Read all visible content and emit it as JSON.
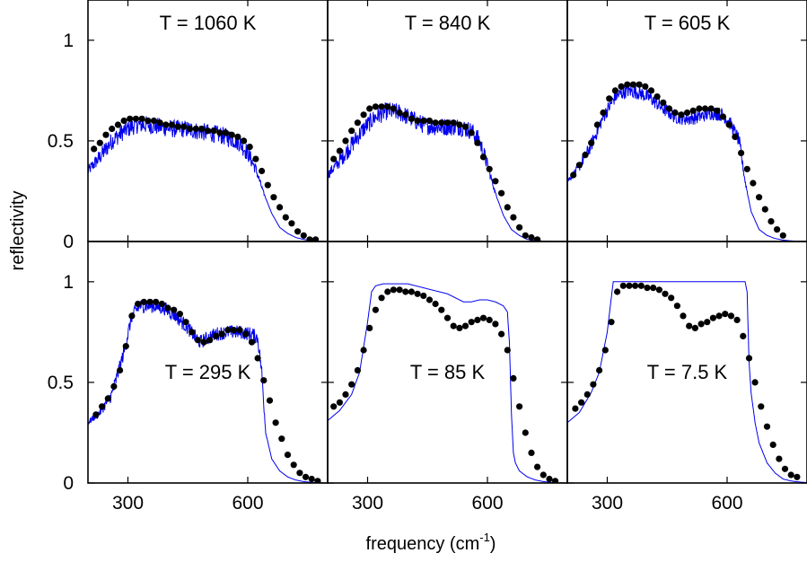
{
  "chart_data": {
    "type": "scatter",
    "ylabel": "reflectivity",
    "xlabel": "frequency (cm",
    "xlabel_sup": "-1",
    "xlabel_close": ")",
    "xlim": [
      200,
      800
    ],
    "ylim": [
      0,
      1.2
    ],
    "xticks": [
      300,
      600
    ],
    "xtick_labels": [
      "300",
      "600"
    ],
    "yticks": [
      0,
      0.5,
      1
    ],
    "ytick_labels": [
      "0",
      "0.5",
      "1"
    ],
    "colors": {
      "measured": "#000000",
      "fit": "#0000ee"
    },
    "grid": false,
    "panels": [
      {
        "label": "T =  1060 K",
        "label_pos": "top",
        "dot_x": [
          215,
          230,
          245,
          260,
          275,
          290,
          305,
          320,
          335,
          350,
          365,
          380,
          395,
          410,
          425,
          440,
          455,
          470,
          485,
          500,
          515,
          530,
          545,
          560,
          575,
          590,
          605,
          620,
          635,
          650,
          665,
          680,
          695,
          710,
          725,
          740,
          755,
          770
        ],
        "dot_y": [
          0.46,
          0.49,
          0.53,
          0.56,
          0.58,
          0.6,
          0.61,
          0.61,
          0.61,
          0.6,
          0.6,
          0.59,
          0.58,
          0.58,
          0.57,
          0.57,
          0.56,
          0.56,
          0.56,
          0.55,
          0.55,
          0.54,
          0.54,
          0.53,
          0.52,
          0.5,
          0.47,
          0.41,
          0.35,
          0.28,
          0.22,
          0.17,
          0.12,
          0.09,
          0.05,
          0.03,
          0.01,
          0.01
        ],
        "fit_x": [
          200,
          230,
          260,
          290,
          320,
          350,
          380,
          410,
          440,
          470,
          500,
          530,
          560,
          580,
          600,
          620,
          640,
          660,
          680,
          700,
          720,
          740,
          760,
          780,
          800
        ],
        "fit_y": [
          0.35,
          0.42,
          0.5,
          0.55,
          0.58,
          0.58,
          0.57,
          0.56,
          0.56,
          0.55,
          0.54,
          0.53,
          0.51,
          0.49,
          0.44,
          0.36,
          0.24,
          0.14,
          0.07,
          0.04,
          0.02,
          0.01,
          0.005,
          0.002,
          0.001
        ],
        "noise": 0.045
      },
      {
        "label": "T =  840 K",
        "label_pos": "top",
        "dot_x": [
          215,
          230,
          245,
          260,
          275,
          290,
          305,
          320,
          335,
          350,
          365,
          380,
          395,
          410,
          425,
          440,
          455,
          470,
          485,
          500,
          515,
          530,
          545,
          560,
          575,
          590,
          605,
          620,
          635,
          650,
          665,
          680,
          695,
          710,
          725
        ],
        "dot_y": [
          0.41,
          0.45,
          0.5,
          0.55,
          0.59,
          0.63,
          0.66,
          0.67,
          0.67,
          0.67,
          0.66,
          0.64,
          0.63,
          0.61,
          0.6,
          0.6,
          0.6,
          0.59,
          0.59,
          0.59,
          0.59,
          0.58,
          0.57,
          0.54,
          0.49,
          0.42,
          0.36,
          0.3,
          0.24,
          0.17,
          0.12,
          0.07,
          0.03,
          0.02,
          0.01
        ],
        "fit_x": [
          200,
          230,
          260,
          290,
          320,
          350,
          380,
          410,
          440,
          470,
          500,
          530,
          560,
          580,
          600,
          620,
          640,
          660,
          680,
          700,
          720,
          740,
          760,
          780,
          800
        ],
        "fit_y": [
          0.33,
          0.4,
          0.48,
          0.56,
          0.62,
          0.65,
          0.64,
          0.61,
          0.58,
          0.57,
          0.57,
          0.57,
          0.55,
          0.5,
          0.38,
          0.24,
          0.13,
          0.06,
          0.03,
          0.01,
          0.005,
          0.002,
          0.001,
          0.0,
          0.0
        ],
        "noise": 0.045
      },
      {
        "label": "T =  605 K",
        "label_pos": "top",
        "dot_x": [
          215,
          230,
          245,
          260,
          275,
          290,
          305,
          320,
          335,
          350,
          365,
          380,
          395,
          410,
          425,
          440,
          455,
          470,
          485,
          500,
          515,
          530,
          545,
          560,
          575,
          590,
          605,
          620,
          635,
          650,
          665,
          680,
          695,
          710,
          725,
          740
        ],
        "dot_y": [
          0.33,
          0.38,
          0.43,
          0.49,
          0.58,
          0.64,
          0.71,
          0.75,
          0.77,
          0.78,
          0.78,
          0.78,
          0.77,
          0.75,
          0.72,
          0.69,
          0.66,
          0.64,
          0.63,
          0.64,
          0.65,
          0.66,
          0.66,
          0.66,
          0.65,
          0.62,
          0.58,
          0.52,
          0.44,
          0.36,
          0.29,
          0.22,
          0.16,
          0.1,
          0.06,
          0.03
        ],
        "fit_x": [
          200,
          230,
          260,
          290,
          320,
          350,
          380,
          410,
          440,
          470,
          500,
          530,
          560,
          590,
          610,
          630,
          645,
          660,
          680,
          700,
          720,
          740,
          760,
          780,
          800
        ],
        "fit_y": [
          0.3,
          0.37,
          0.48,
          0.62,
          0.72,
          0.75,
          0.74,
          0.71,
          0.66,
          0.62,
          0.61,
          0.62,
          0.64,
          0.63,
          0.58,
          0.5,
          0.3,
          0.15,
          0.06,
          0.03,
          0.015,
          0.007,
          0.003,
          0.001,
          0.0
        ],
        "noise": 0.035
      },
      {
        "label": "T =  295 K",
        "label_pos": "middle",
        "dot_x": [
          220,
          235,
          250,
          265,
          280,
          295,
          310,
          325,
          340,
          355,
          370,
          385,
          400,
          415,
          430,
          445,
          460,
          475,
          490,
          505,
          520,
          535,
          550,
          565,
          580,
          595,
          610,
          625,
          640,
          655,
          670,
          685,
          700,
          715,
          730,
          745,
          760,
          775
        ],
        "dot_y": [
          0.34,
          0.38,
          0.42,
          0.48,
          0.56,
          0.68,
          0.83,
          0.89,
          0.9,
          0.9,
          0.9,
          0.89,
          0.87,
          0.86,
          0.84,
          0.8,
          0.75,
          0.71,
          0.7,
          0.71,
          0.73,
          0.74,
          0.76,
          0.76,
          0.76,
          0.74,
          0.7,
          0.62,
          0.51,
          0.41,
          0.3,
          0.22,
          0.14,
          0.09,
          0.05,
          0.03,
          0.02,
          0.01
        ],
        "fit_x": [
          200,
          230,
          260,
          290,
          310,
          330,
          360,
          390,
          420,
          450,
          480,
          500,
          520,
          550,
          580,
          610,
          625,
          635,
          645,
          660,
          680,
          700,
          720,
          740,
          760,
          780,
          800
        ],
        "fit_y": [
          0.3,
          0.35,
          0.44,
          0.65,
          0.83,
          0.88,
          0.88,
          0.87,
          0.83,
          0.77,
          0.7,
          0.72,
          0.74,
          0.75,
          0.75,
          0.74,
          0.72,
          0.55,
          0.25,
          0.12,
          0.06,
          0.03,
          0.015,
          0.007,
          0.003,
          0.001,
          0.0
        ],
        "noise": 0.035
      },
      {
        "label": "T = 85 K",
        "label_pos": "middle",
        "dot_x": [
          215,
          230,
          245,
          260,
          275,
          290,
          305,
          320,
          335,
          350,
          365,
          380,
          395,
          410,
          425,
          440,
          455,
          470,
          485,
          500,
          515,
          530,
          545,
          560,
          575,
          590,
          605,
          620,
          635,
          650,
          665,
          680,
          695,
          710,
          725,
          740,
          755,
          770
        ],
        "dot_y": [
          0.38,
          0.4,
          0.44,
          0.49,
          0.56,
          0.66,
          0.77,
          0.86,
          0.92,
          0.95,
          0.96,
          0.96,
          0.95,
          0.95,
          0.94,
          0.93,
          0.91,
          0.89,
          0.86,
          0.82,
          0.78,
          0.77,
          0.78,
          0.8,
          0.81,
          0.82,
          0.81,
          0.79,
          0.74,
          0.66,
          0.52,
          0.38,
          0.25,
          0.15,
          0.08,
          0.04,
          0.02,
          0.01
        ],
        "fit_x": [
          200,
          230,
          260,
          280,
          300,
          310,
          320,
          340,
          360,
          380,
          400,
          420,
          440,
          460,
          480,
          500,
          520,
          540,
          560,
          580,
          600,
          620,
          640,
          650,
          655,
          660,
          665,
          670,
          680,
          700,
          720,
          740,
          760,
          780,
          800
        ],
        "fit_y": [
          0.31,
          0.36,
          0.44,
          0.55,
          0.8,
          0.95,
          0.98,
          0.99,
          0.99,
          0.99,
          0.99,
          0.98,
          0.97,
          0.96,
          0.95,
          0.94,
          0.92,
          0.9,
          0.9,
          0.91,
          0.91,
          0.9,
          0.88,
          0.85,
          0.7,
          0.35,
          0.15,
          0.1,
          0.06,
          0.03,
          0.015,
          0.007,
          0.003,
          0.001,
          0.0
        ],
        "noise": 0.0
      },
      {
        "label": "T =  7.5 K",
        "label_pos": "middle",
        "dot_x": [
          220,
          235,
          250,
          265,
          280,
          295,
          310,
          325,
          340,
          355,
          370,
          385,
          400,
          415,
          430,
          445,
          460,
          475,
          490,
          505,
          520,
          535,
          550,
          565,
          580,
          595,
          610,
          625,
          640,
          655,
          670,
          685,
          700,
          715,
          730,
          745,
          760,
          775
        ],
        "dot_y": [
          0.37,
          0.4,
          0.44,
          0.49,
          0.56,
          0.66,
          0.8,
          0.95,
          0.98,
          0.98,
          0.98,
          0.98,
          0.97,
          0.97,
          0.96,
          0.94,
          0.92,
          0.88,
          0.83,
          0.78,
          0.77,
          0.79,
          0.8,
          0.82,
          0.83,
          0.84,
          0.83,
          0.81,
          0.73,
          0.62,
          0.5,
          0.38,
          0.28,
          0.19,
          0.12,
          0.07,
          0.04,
          0.03
        ],
        "fit_x": [
          200,
          230,
          260,
          280,
          300,
          310,
          315,
          330,
          350,
          400,
          450,
          500,
          550,
          600,
          640,
          645,
          650,
          655,
          660,
          670,
          680,
          700,
          720,
          740,
          760,
          780,
          800
        ],
        "fit_y": [
          0.3,
          0.35,
          0.45,
          0.55,
          0.75,
          0.92,
          1.0,
          1.0,
          1.0,
          1.0,
          1.0,
          1.0,
          1.0,
          1.0,
          1.0,
          1.0,
          0.95,
          0.6,
          0.45,
          0.3,
          0.2,
          0.1,
          0.05,
          0.02,
          0.01,
          0.005,
          0.002
        ],
        "noise": 0.0
      }
    ]
  }
}
